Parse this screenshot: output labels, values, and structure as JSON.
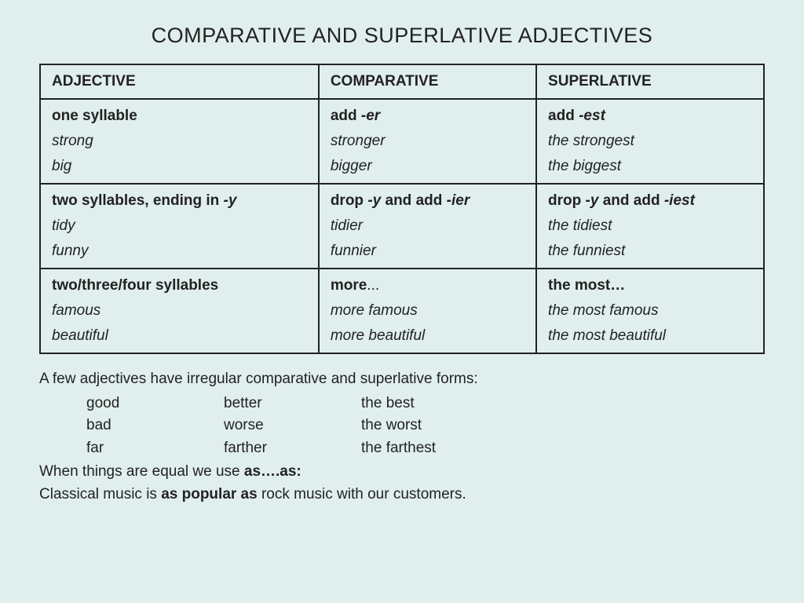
{
  "title": "COMPARATIVE AND SUPERLATIVE ADJECTIVES",
  "table": {
    "headers": {
      "col1": "ADJECTIVE",
      "col2": "COMPARATIVE",
      "col3": "SUPERLATIVE"
    },
    "row1": {
      "adj_rule": "one syllable",
      "adj_ex1": "strong",
      "adj_ex2": "big",
      "comp_rule_pre": "add ",
      "comp_rule_suf": "-er",
      "comp_ex1": "stronger",
      "comp_ex2": "bigger",
      "sup_rule_pre": "add ",
      "sup_rule_suf": "-est",
      "sup_ex1": "the strongest",
      "sup_ex2": "the biggest"
    },
    "row2": {
      "adj_rule_pre": "two syllables, ending in ",
      "adj_rule_suf": "-y",
      "adj_ex1": "tidy",
      "adj_ex2": "funny",
      "comp_rule_pre": "drop ",
      "comp_rule_mid1": "-y",
      "comp_rule_mid2": " and add ",
      "comp_rule_suf": "-ier",
      "comp_ex1": "tidier",
      "comp_ex2": "funnier",
      "sup_rule_pre": "drop ",
      "sup_rule_mid1": "-y",
      "sup_rule_mid2": " and add ",
      "sup_rule_suf": "-iest",
      "sup_ex1": "the tidiest",
      "sup_ex2": "the funniest"
    },
    "row3": {
      "adj_rule": "two/three/four syllables",
      "adj_ex1": "famous",
      "adj_ex2": "beautiful",
      "comp_rule": "more",
      "comp_rule_suffix": "...",
      "comp_ex1": "more famous",
      "comp_ex2": "more beautiful",
      "sup_rule": "the most…",
      "sup_ex1": "the most famous",
      "sup_ex2": "the most beautiful"
    }
  },
  "irregular": {
    "intro": "A few adjectives have irregular comparative and superlative forms:",
    "rows": [
      {
        "adj": "good",
        "comp": "better",
        "sup": "the best"
      },
      {
        "adj": "bad",
        "comp": "worse",
        "sup": "the worst"
      },
      {
        "adj": "far",
        "comp": "farther",
        "sup": "the farthest"
      }
    ],
    "equal_pre": "When things are equal we use ",
    "equal_bold": "as….as:",
    "example_pre": "Classical music is ",
    "example_bold": "as popular as",
    "example_post": " rock music with our customers."
  }
}
